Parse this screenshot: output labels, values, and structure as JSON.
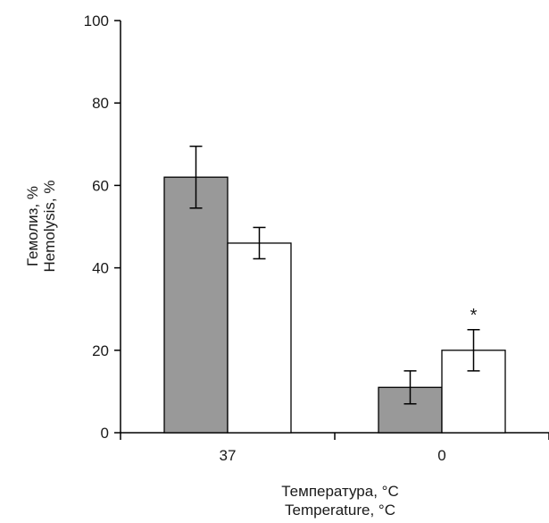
{
  "chart_data": {
    "type": "bar",
    "categories": [
      "37",
      "0"
    ],
    "series": [
      {
        "values": [
          62,
          11
        ],
        "errors": [
          7.5,
          4
        ],
        "color": "#999999"
      },
      {
        "values": [
          46,
          20
        ],
        "errors": [
          3.8,
          5
        ],
        "color": "#ffffff"
      }
    ],
    "ylim": [
      0,
      100
    ],
    "yticks": [
      "0",
      "20",
      "40",
      "60",
      "80",
      "100"
    ],
    "ylabel_lines": [
      "Гемолиз, %",
      "Hemolysis, %"
    ],
    "xlabel_lines": [
      "Температура, °C",
      "Temperature, °C"
    ],
    "annotations": [
      {
        "text": "*",
        "category": "0",
        "series_index": 1
      }
    ],
    "grid": false,
    "legend": "none"
  }
}
